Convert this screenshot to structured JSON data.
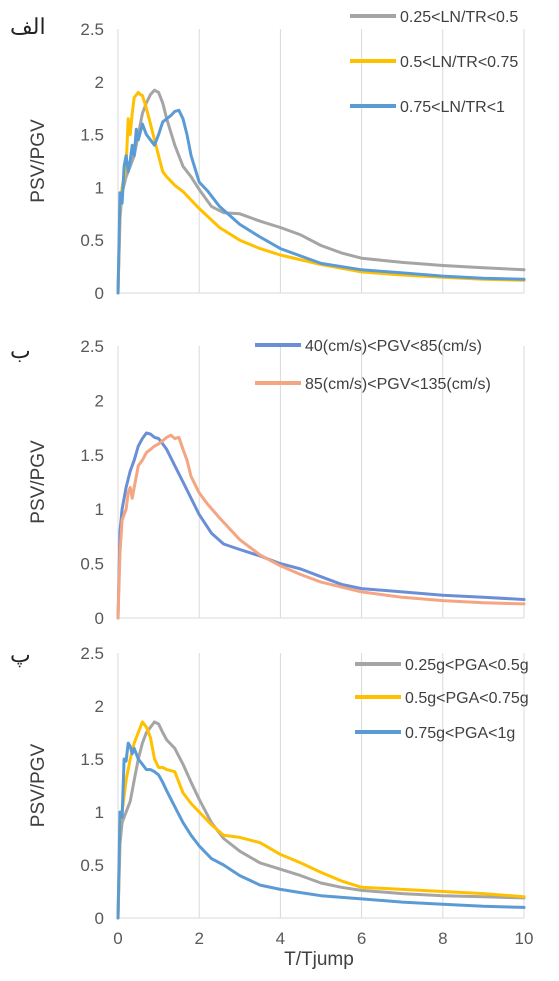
{
  "chart_data": [
    {
      "type": "line",
      "panel_label": "الف",
      "xlabel": "",
      "ylabel": "PSV/PGV",
      "xlim": [
        0,
        10
      ],
      "ylim": [
        0,
        2.5
      ],
      "x_ticks": [
        "0",
        "2",
        "4",
        "6",
        "8",
        "10"
      ],
      "y_ticks": [
        "0",
        "0.5",
        "1",
        "1.5",
        "2",
        "2.5"
      ],
      "show_x_tick_labels": false,
      "grid": "vertical",
      "legend_position": "top-right",
      "series": [
        {
          "name": "0.25<LN/TR<0.5",
          "color": "#a5a5a5",
          "x": [
            0,
            0.05,
            0.1,
            0.2,
            0.3,
            0.4,
            0.5,
            0.6,
            0.7,
            0.8,
            0.9,
            1.0,
            1.1,
            1.2,
            1.4,
            1.6,
            1.8,
            2.0,
            2.3,
            2.6,
            3.0,
            3.5,
            4.0,
            4.5,
            5.0,
            5.5,
            6.0,
            7.0,
            8.0,
            9.0,
            10.0
          ],
          "y": [
            0,
            0.7,
            0.95,
            1.1,
            1.2,
            1.3,
            1.5,
            1.7,
            1.8,
            1.88,
            1.92,
            1.9,
            1.8,
            1.65,
            1.4,
            1.2,
            1.1,
            0.98,
            0.82,
            0.76,
            0.75,
            0.68,
            0.62,
            0.55,
            0.45,
            0.38,
            0.33,
            0.29,
            0.26,
            0.24,
            0.22
          ]
        },
        {
          "name": "0.5<LN/TR<0.75",
          "color": "#ffc000",
          "x": [
            0,
            0.05,
            0.1,
            0.2,
            0.25,
            0.3,
            0.35,
            0.4,
            0.5,
            0.55,
            0.6,
            0.7,
            0.8,
            0.9,
            1.0,
            1.1,
            1.2,
            1.4,
            1.6,
            2.0,
            2.5,
            3.0,
            3.5,
            4.0,
            5.0,
            6.0,
            7.0,
            8.0,
            9.0,
            10.0
          ],
          "y": [
            0,
            0.8,
            1.0,
            1.2,
            1.65,
            1.5,
            1.7,
            1.85,
            1.9,
            1.88,
            1.87,
            1.75,
            1.6,
            1.45,
            1.3,
            1.15,
            1.1,
            1.02,
            0.96,
            0.8,
            0.62,
            0.5,
            0.42,
            0.36,
            0.27,
            0.2,
            0.17,
            0.15,
            0.13,
            0.12
          ]
        },
        {
          "name": "0.75<LN/TR<1",
          "color": "#5b9bd5",
          "x": [
            0,
            0.05,
            0.1,
            0.15,
            0.2,
            0.25,
            0.3,
            0.35,
            0.4,
            0.45,
            0.5,
            0.6,
            0.7,
            0.8,
            0.9,
            1.0,
            1.1,
            1.2,
            1.3,
            1.4,
            1.5,
            1.6,
            1.7,
            1.8,
            2.0,
            2.2,
            2.5,
            3.0,
            3.5,
            4.0,
            4.5,
            5.0,
            6.0,
            7.0,
            8.0,
            9.0,
            10.0
          ],
          "y": [
            0,
            0.95,
            0.85,
            1.2,
            1.3,
            1.15,
            1.25,
            1.4,
            1.3,
            1.55,
            1.45,
            1.6,
            1.5,
            1.45,
            1.4,
            1.5,
            1.62,
            1.65,
            1.68,
            1.72,
            1.73,
            1.65,
            1.5,
            1.3,
            1.05,
            0.97,
            0.82,
            0.65,
            0.53,
            0.42,
            0.35,
            0.28,
            0.22,
            0.19,
            0.16,
            0.14,
            0.13
          ]
        }
      ]
    },
    {
      "type": "line",
      "panel_label": "ب",
      "xlabel": "",
      "ylabel": "PSV/PGV",
      "xlim": [
        0,
        10
      ],
      "ylim": [
        0,
        2.5
      ],
      "x_ticks": [
        "0",
        "2",
        "4",
        "6",
        "8",
        "10"
      ],
      "y_ticks": [
        "0",
        "0.5",
        "1",
        "1.5",
        "2",
        "2.5"
      ],
      "show_x_tick_labels": false,
      "grid": "vertical",
      "legend_position": "top-right",
      "series": [
        {
          "name": "40(cm/s)<PGV<85(cm/s)",
          "color": "#6b8fd6",
          "x": [
            0,
            0.05,
            0.1,
            0.2,
            0.3,
            0.4,
            0.5,
            0.6,
            0.7,
            0.8,
            0.9,
            1.0,
            1.1,
            1.2,
            1.4,
            1.6,
            1.8,
            2.0,
            2.3,
            2.6,
            3.0,
            3.5,
            4.0,
            4.5,
            5.0,
            5.5,
            6.0,
            7.0,
            8.0,
            9.0,
            10.0
          ],
          "y": [
            0,
            0.8,
            1.0,
            1.2,
            1.35,
            1.45,
            1.58,
            1.65,
            1.7,
            1.69,
            1.66,
            1.65,
            1.6,
            1.55,
            1.4,
            1.25,
            1.1,
            0.95,
            0.78,
            0.68,
            0.63,
            0.57,
            0.5,
            0.45,
            0.38,
            0.31,
            0.27,
            0.24,
            0.21,
            0.19,
            0.17
          ]
        },
        {
          "name": "85(cm/s)<PGV<135(cm/s)",
          "color": "#f4a582",
          "x": [
            0,
            0.05,
            0.1,
            0.2,
            0.25,
            0.3,
            0.35,
            0.4,
            0.5,
            0.6,
            0.7,
            0.8,
            0.9,
            1.0,
            1.1,
            1.2,
            1.3,
            1.4,
            1.5,
            1.6,
            1.7,
            1.8,
            2.0,
            2.2,
            2.5,
            3.0,
            3.5,
            4.0,
            4.5,
            5.0,
            6.0,
            7.0,
            8.0,
            9.0,
            10.0
          ],
          "y": [
            0,
            0.6,
            0.9,
            1.0,
            1.15,
            1.2,
            1.1,
            1.2,
            1.4,
            1.45,
            1.52,
            1.55,
            1.58,
            1.6,
            1.63,
            1.66,
            1.68,
            1.65,
            1.66,
            1.55,
            1.45,
            1.3,
            1.15,
            1.05,
            0.92,
            0.72,
            0.58,
            0.48,
            0.4,
            0.33,
            0.24,
            0.19,
            0.16,
            0.14,
            0.13
          ]
        }
      ]
    },
    {
      "type": "line",
      "panel_label": "پ",
      "xlabel": "T/Tjump",
      "ylabel": "PSV/PGV",
      "xlim": [
        0,
        10
      ],
      "ylim": [
        0,
        2.5
      ],
      "x_ticks": [
        "0",
        "2",
        "4",
        "6",
        "8",
        "10"
      ],
      "y_ticks": [
        "0",
        "0.5",
        "1",
        "1.5",
        "2",
        "2.5"
      ],
      "show_x_tick_labels": true,
      "grid": "vertical",
      "legend_position": "top-right",
      "series": [
        {
          "name": "0.25g<PGA<0.5g",
          "color": "#a5a5a5",
          "x": [
            0,
            0.05,
            0.1,
            0.2,
            0.3,
            0.4,
            0.5,
            0.6,
            0.7,
            0.8,
            0.9,
            1.0,
            1.1,
            1.2,
            1.4,
            1.6,
            1.8,
            2.0,
            2.3,
            2.6,
            3.0,
            3.5,
            4.0,
            4.5,
            5.0,
            5.5,
            6.0,
            7.0,
            8.0,
            9.0,
            10.0
          ],
          "y": [
            0,
            0.7,
            0.9,
            1.0,
            1.1,
            1.3,
            1.5,
            1.65,
            1.75,
            1.8,
            1.85,
            1.83,
            1.75,
            1.68,
            1.6,
            1.45,
            1.28,
            1.12,
            0.9,
            0.75,
            0.63,
            0.52,
            0.46,
            0.4,
            0.33,
            0.29,
            0.26,
            0.23,
            0.21,
            0.2,
            0.19
          ]
        },
        {
          "name": "0.5g<PGA<0.75g",
          "color": "#ffc000",
          "x": [
            0,
            0.05,
            0.1,
            0.2,
            0.3,
            0.4,
            0.5,
            0.6,
            0.7,
            0.8,
            0.9,
            1.0,
            1.1,
            1.2,
            1.4,
            1.6,
            1.8,
            2.0,
            2.3,
            2.6,
            3.0,
            3.5,
            4.0,
            4.5,
            5.0,
            5.5,
            6.0,
            7.0,
            8.0,
            9.0,
            10.0
          ],
          "y": [
            0,
            0.9,
            1.0,
            1.3,
            1.5,
            1.65,
            1.75,
            1.85,
            1.8,
            1.7,
            1.5,
            1.42,
            1.42,
            1.4,
            1.38,
            1.18,
            1.08,
            1.0,
            0.88,
            0.78,
            0.76,
            0.71,
            0.6,
            0.52,
            0.43,
            0.35,
            0.29,
            0.27,
            0.25,
            0.23,
            0.2
          ]
        },
        {
          "name": "0.75g<PGA<1g",
          "color": "#5b9bd5",
          "x": [
            0,
            0.05,
            0.1,
            0.15,
            0.2,
            0.25,
            0.3,
            0.35,
            0.4,
            0.5,
            0.6,
            0.7,
            0.8,
            0.9,
            1.0,
            1.1,
            1.2,
            1.4,
            1.6,
            1.8,
            2.0,
            2.3,
            2.6,
            3.0,
            3.5,
            4.0,
            4.5,
            5.0,
            6.0,
            7.0,
            8.0,
            9.0,
            10.0
          ],
          "y": [
            0,
            1.0,
            0.95,
            1.5,
            1.48,
            1.65,
            1.62,
            1.55,
            1.6,
            1.5,
            1.45,
            1.4,
            1.4,
            1.38,
            1.35,
            1.28,
            1.2,
            1.05,
            0.9,
            0.78,
            0.68,
            0.56,
            0.5,
            0.4,
            0.31,
            0.27,
            0.24,
            0.21,
            0.18,
            0.15,
            0.13,
            0.11,
            0.1
          ]
        }
      ]
    }
  ]
}
